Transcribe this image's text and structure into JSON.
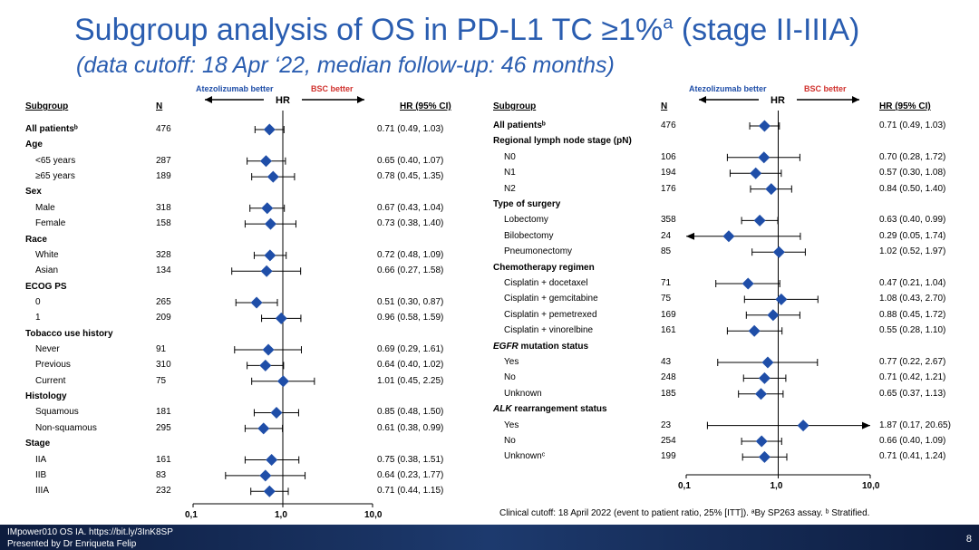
{
  "title": "Subgroup analysis of OS in PD-L1 TC ≥1%",
  "title_sup": "a",
  "title_tail": " (stage II-IIIA)",
  "subtitle": "(data cutoff: 18 Apr ‘22, median follow-up: 46 months)",
  "headers": {
    "subgroup": "Subgroup",
    "n": "N",
    "hr": "HR",
    "hrci": "HR (95% CI)"
  },
  "direction": {
    "left": "Atezolizumab better",
    "right": "BSC better"
  },
  "colors": {
    "title": "#2a5db0",
    "marker": "#1f4ea8",
    "left_label": "#1f4ea8",
    "right_label": "#d0312d"
  },
  "footnote": "Clinical cutoff: 18 April 2022 (event to patient ratio, 25% [ITT]). ᵃBy SP263 assay. ᵇ Stratified.",
  "footer": {
    "line1": "IMpower010 OS IA. https://bit.ly/3InK8SP",
    "line2": "Presented by Dr Enriqueta Felip",
    "page": "8"
  },
  "chart_data": [
    {
      "type": "forest",
      "x_scale": "log",
      "xlim": [
        0.1,
        10
      ],
      "x_ticks": [
        "0,1",
        "1,0",
        "10,0"
      ],
      "reference_line": 1,
      "rows": [
        {
          "label": "All patientsᵇ",
          "kind": "lead",
          "n": "476",
          "hr": 0.71,
          "lo": 0.49,
          "hi": 1.03,
          "ci_text": "0.71 (0.49, 1.03)"
        },
        {
          "label": "Age",
          "kind": "cat"
        },
        {
          "label": "<65 years",
          "kind": "sub",
          "n": "287",
          "hr": 0.65,
          "lo": 0.4,
          "hi": 1.07,
          "ci_text": "0.65 (0.40, 1.07)"
        },
        {
          "label": "≥65 years",
          "kind": "sub",
          "n": "189",
          "hr": 0.78,
          "lo": 0.45,
          "hi": 1.35,
          "ci_text": "0.78 (0.45, 1.35)"
        },
        {
          "label": "Sex",
          "kind": "cat"
        },
        {
          "label": "Male",
          "kind": "sub",
          "n": "318",
          "hr": 0.67,
          "lo": 0.43,
          "hi": 1.04,
          "ci_text": "0.67 (0.43, 1.04)"
        },
        {
          "label": "Female",
          "kind": "sub",
          "n": "158",
          "hr": 0.73,
          "lo": 0.38,
          "hi": 1.4,
          "ci_text": "0.73 (0.38, 1.40)"
        },
        {
          "label": "Race",
          "kind": "cat"
        },
        {
          "label": "White",
          "kind": "sub",
          "n": "328",
          "hr": 0.72,
          "lo": 0.48,
          "hi": 1.09,
          "ci_text": "0.72 (0.48, 1.09)"
        },
        {
          "label": "Asian",
          "kind": "sub",
          "n": "134",
          "hr": 0.66,
          "lo": 0.27,
          "hi": 1.58,
          "ci_text": "0.66 (0.27, 1.58)"
        },
        {
          "label": "ECOG PS",
          "kind": "cat"
        },
        {
          "label": "0",
          "kind": "sub",
          "n": "265",
          "hr": 0.51,
          "lo": 0.3,
          "hi": 0.87,
          "ci_text": "0.51 (0.30, 0.87)"
        },
        {
          "label": "1",
          "kind": "sub",
          "n": "209",
          "hr": 0.96,
          "lo": 0.58,
          "hi": 1.59,
          "ci_text": "0.96 (0.58, 1.59)"
        },
        {
          "label": "Tobacco use history",
          "kind": "cat"
        },
        {
          "label": "Never",
          "kind": "sub",
          "n": "91",
          "hr": 0.69,
          "lo": 0.29,
          "hi": 1.61,
          "ci_text": "0.69 (0.29, 1.61)"
        },
        {
          "label": "Previous",
          "kind": "sub",
          "n": "310",
          "hr": 0.64,
          "lo": 0.4,
          "hi": 1.02,
          "ci_text": "0.64 (0.40, 1.02)"
        },
        {
          "label": "Current",
          "kind": "sub",
          "n": "75",
          "hr": 1.01,
          "lo": 0.45,
          "hi": 2.25,
          "ci_text": "1.01 (0.45, 2.25)"
        },
        {
          "label": "Histology",
          "kind": "cat"
        },
        {
          "label": "Squamous",
          "kind": "sub",
          "n": "181",
          "hr": 0.85,
          "lo": 0.48,
          "hi": 1.5,
          "ci_text": "0.85 (0.48, 1.50)"
        },
        {
          "label": "Non-squamous",
          "kind": "sub",
          "n": "295",
          "hr": 0.61,
          "lo": 0.38,
          "hi": 0.99,
          "ci_text": "0.61 (0.38, 0.99)"
        },
        {
          "label": "Stage",
          "kind": "cat"
        },
        {
          "label": "IIA",
          "kind": "sub",
          "n": "161",
          "hr": 0.75,
          "lo": 0.38,
          "hi": 1.51,
          "ci_text": "0.75 (0.38, 1.51)"
        },
        {
          "label": "IIB",
          "kind": "sub",
          "n": "83",
          "hr": 0.64,
          "lo": 0.23,
          "hi": 1.77,
          "ci_text": "0.64 (0.23, 1.77)"
        },
        {
          "label": "IIIA",
          "kind": "sub",
          "n": "232",
          "hr": 0.71,
          "lo": 0.44,
          "hi": 1.15,
          "ci_text": "0.71 (0.44, 1.15)"
        }
      ]
    },
    {
      "type": "forest",
      "x_scale": "log",
      "xlim": [
        0.1,
        10
      ],
      "x_ticks": [
        "0,1",
        "1,0",
        "10,0"
      ],
      "reference_line": 1,
      "rows": [
        {
          "label": "All patientsᵇ",
          "kind": "lead",
          "n": "476",
          "hr": 0.71,
          "lo": 0.49,
          "hi": 1.03,
          "ci_text": "0.71 (0.49, 1.03)"
        },
        {
          "label": "Regional lymph node stage (pN)",
          "kind": "cat"
        },
        {
          "label": "N0",
          "kind": "sub",
          "n": "106",
          "hr": 0.7,
          "lo": 0.28,
          "hi": 1.72,
          "ci_text": "0.70 (0.28, 1.72)"
        },
        {
          "label": "N1",
          "kind": "sub",
          "n": "194",
          "hr": 0.57,
          "lo": 0.3,
          "hi": 1.08,
          "ci_text": "0.57 (0.30, 1.08)"
        },
        {
          "label": "N2",
          "kind": "sub",
          "n": "176",
          "hr": 0.84,
          "lo": 0.5,
          "hi": 1.4,
          "ci_text": "0.84 (0.50, 1.40)"
        },
        {
          "label": "Type of surgery",
          "kind": "cat"
        },
        {
          "label": "Lobectomy",
          "kind": "sub",
          "n": "358",
          "hr": 0.63,
          "lo": 0.4,
          "hi": 0.99,
          "ci_text": "0.63 (0.40, 0.99)"
        },
        {
          "label": "Bilobectomy",
          "kind": "sub",
          "n": "24",
          "hr": 0.29,
          "lo": 0.05,
          "hi": 1.74,
          "ci_text": "0.29 (0.05, 1.74)"
        },
        {
          "label": "Pneumonectomy",
          "kind": "sub",
          "n": "85",
          "hr": 1.02,
          "lo": 0.52,
          "hi": 1.97,
          "ci_text": "1.02 (0.52, 1.97)"
        },
        {
          "label": "Chemotherapy regimen",
          "kind": "cat"
        },
        {
          "label": "Cisplatin + docetaxel",
          "kind": "sub",
          "n": "71",
          "hr": 0.47,
          "lo": 0.21,
          "hi": 1.04,
          "ci_text": "0.47 (0.21, 1.04)"
        },
        {
          "label": "Cisplatin + gemcitabine",
          "kind": "sub",
          "n": "75",
          "hr": 1.08,
          "lo": 0.43,
          "hi": 2.7,
          "ci_text": "1.08 (0.43, 2.70)"
        },
        {
          "label": "Cisplatin + pemetrexed",
          "kind": "sub",
          "n": "169",
          "hr": 0.88,
          "lo": 0.45,
          "hi": 1.72,
          "ci_text": "0.88 (0.45, 1.72)"
        },
        {
          "label": "Cisplatin + vinorelbine",
          "kind": "sub",
          "n": "161",
          "hr": 0.55,
          "lo": 0.28,
          "hi": 1.1,
          "ci_text": "0.55 (0.28, 1.10)"
        },
        {
          "label": "EGFR mutation status",
          "kind": "cat",
          "italic_prefix": "EGFR"
        },
        {
          "label": "Yes",
          "kind": "sub",
          "n": "43",
          "hr": 0.77,
          "lo": 0.22,
          "hi": 2.67,
          "ci_text": "0.77 (0.22, 2.67)"
        },
        {
          "label": "No",
          "kind": "sub",
          "n": "248",
          "hr": 0.71,
          "lo": 0.42,
          "hi": 1.21,
          "ci_text": "0.71 (0.42, 1.21)"
        },
        {
          "label": "Unknown",
          "kind": "sub",
          "n": "185",
          "hr": 0.65,
          "lo": 0.37,
          "hi": 1.13,
          "ci_text": "0.65 (0.37, 1.13)"
        },
        {
          "label": "ALK rearrangement status",
          "kind": "cat",
          "italic_prefix": "ALK"
        },
        {
          "label": "Yes",
          "kind": "sub",
          "n": "23",
          "hr": 1.87,
          "lo": 0.17,
          "hi": 20.65,
          "ci_text": "1.87 (0.17, 20.65)"
        },
        {
          "label": "No",
          "kind": "sub",
          "n": "254",
          "hr": 0.66,
          "lo": 0.4,
          "hi": 1.09,
          "ci_text": "0.66 (0.40, 1.09)"
        },
        {
          "label": "Unknownᶜ",
          "kind": "sub",
          "n": "199",
          "hr": 0.71,
          "lo": 0.41,
          "hi": 1.24,
          "ci_text": "0.71 (0.41, 1.24)"
        }
      ]
    }
  ]
}
